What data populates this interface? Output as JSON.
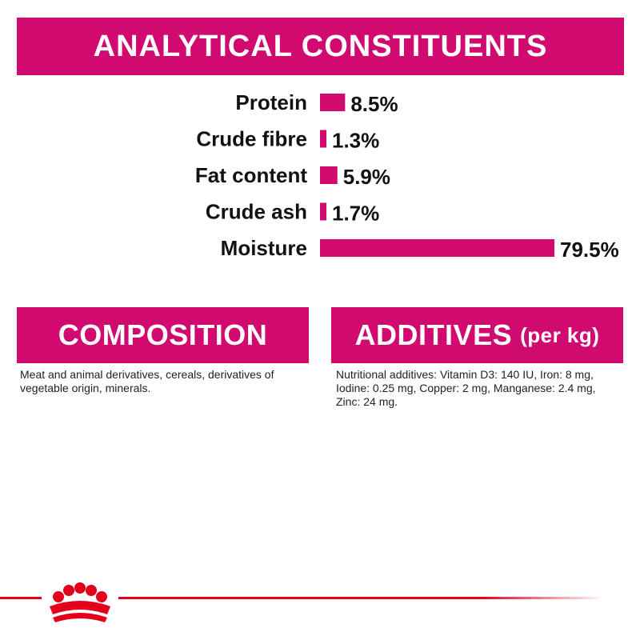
{
  "analytical": {
    "title": "ANALYTICAL CONSTITUENTS"
  },
  "chart_data": {
    "type": "bar",
    "orientation": "horizontal",
    "categories": [
      "Protein",
      "Crude fibre",
      "Fat content",
      "Crude ash",
      "Moisture"
    ],
    "values": [
      8.5,
      1.3,
      5.9,
      1.7,
      79.5
    ],
    "value_labels": [
      "8.5%",
      "1.3%",
      "5.9%",
      "1.7%",
      "79.5%"
    ],
    "unit": "%",
    "title": "ANALYTICAL CONSTITUENTS",
    "xlabel": "",
    "ylabel": "",
    "grid": false,
    "legend": "none",
    "bar_color": "#d10a6f"
  },
  "composition": {
    "title": "COMPOSITION",
    "text": "Meat and animal derivatives, cereals, derivatives of vegetable origin, minerals."
  },
  "additives": {
    "title": "ADDITIVES",
    "subtitle": "(per kg)",
    "text": "Nutritional additives: Vitamin D3: 140 IU, Iron: 8 mg, Iodine: 0.25 mg, Copper: 2 mg, Manganese: 2.4 mg, Zinc: 24 mg."
  },
  "brand": {
    "logo": "royal-crown-logo",
    "accent_color": "#d10a6f",
    "footer_color": "#e2001a"
  }
}
